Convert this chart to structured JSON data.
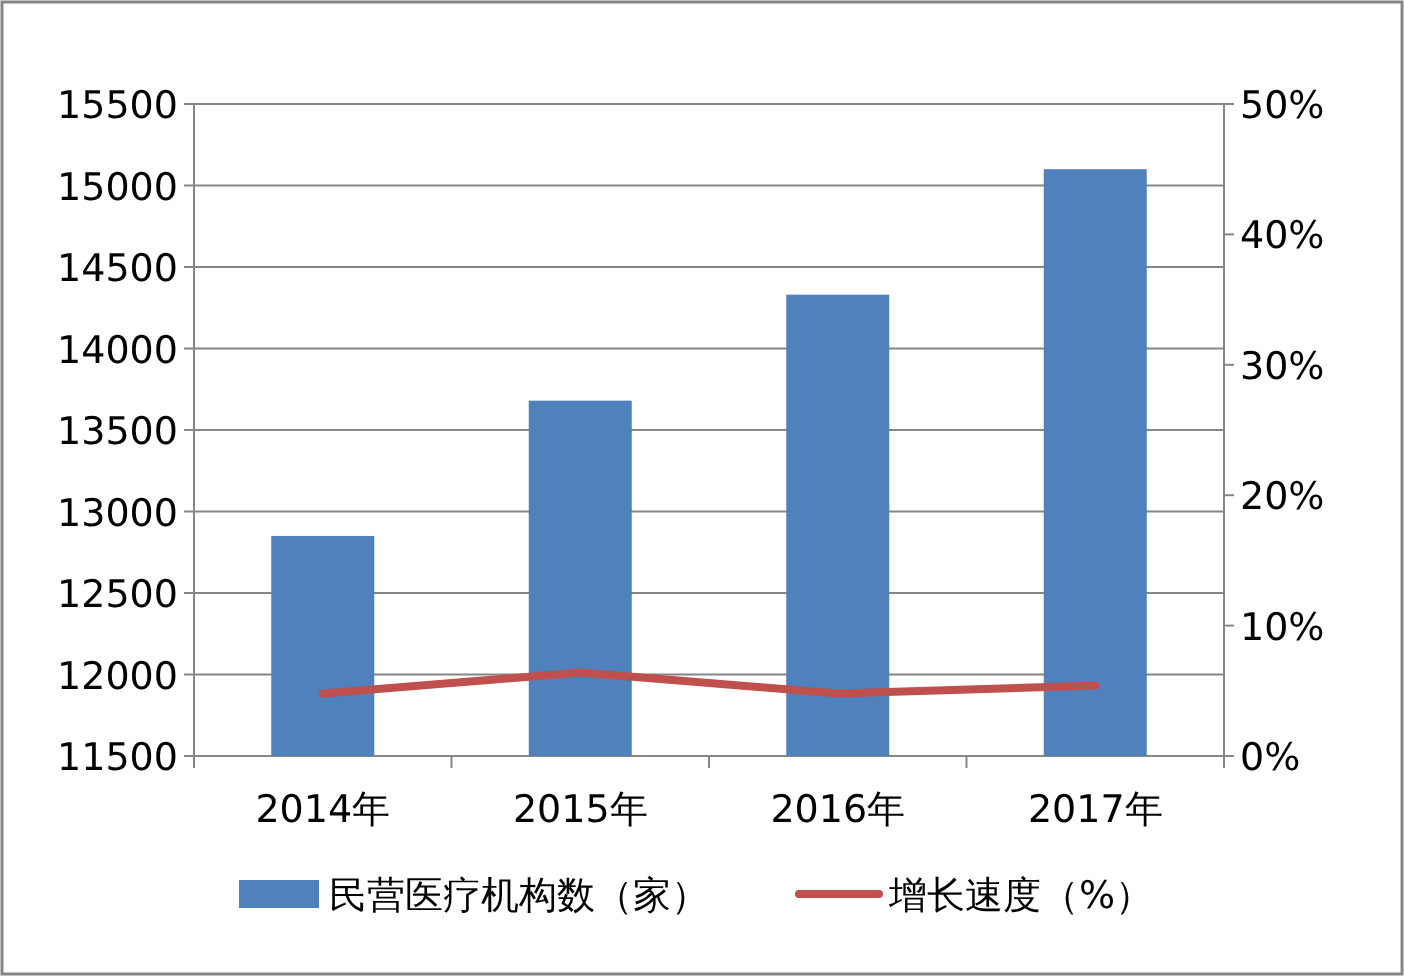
{
  "chart_data": {
    "type": "bar",
    "categories": [
      "2014年",
      "2015年",
      "2016年",
      "2017年"
    ],
    "series": [
      {
        "name": "民营医疗机构数（家）",
        "color": "#4f81bd",
        "values": [
          12850,
          13680,
          14330,
          15100
        ]
      },
      {
        "name": "增长速度（%）",
        "type": "line",
        "axis": "y2",
        "color": "#c0504d",
        "values": [
          4.8,
          6.4,
          4.8,
          5.4
        ]
      }
    ],
    "ylim": [
      11500,
      15500
    ],
    "yticks": [
      11500,
      12000,
      12500,
      13000,
      13500,
      14000,
      14500,
      15000,
      15500
    ],
    "y2lim": [
      0,
      50
    ],
    "y2ticks": [
      {
        "value": 0,
        "label": "0%"
      },
      {
        "value": 10,
        "label": "10%"
      },
      {
        "value": 20,
        "label": "20%"
      },
      {
        "value": 30,
        "label": "30%"
      },
      {
        "value": 40,
        "label": "40%"
      },
      {
        "value": 50,
        "label": "50%"
      }
    ],
    "grid": "y",
    "legend": "bottom"
  }
}
